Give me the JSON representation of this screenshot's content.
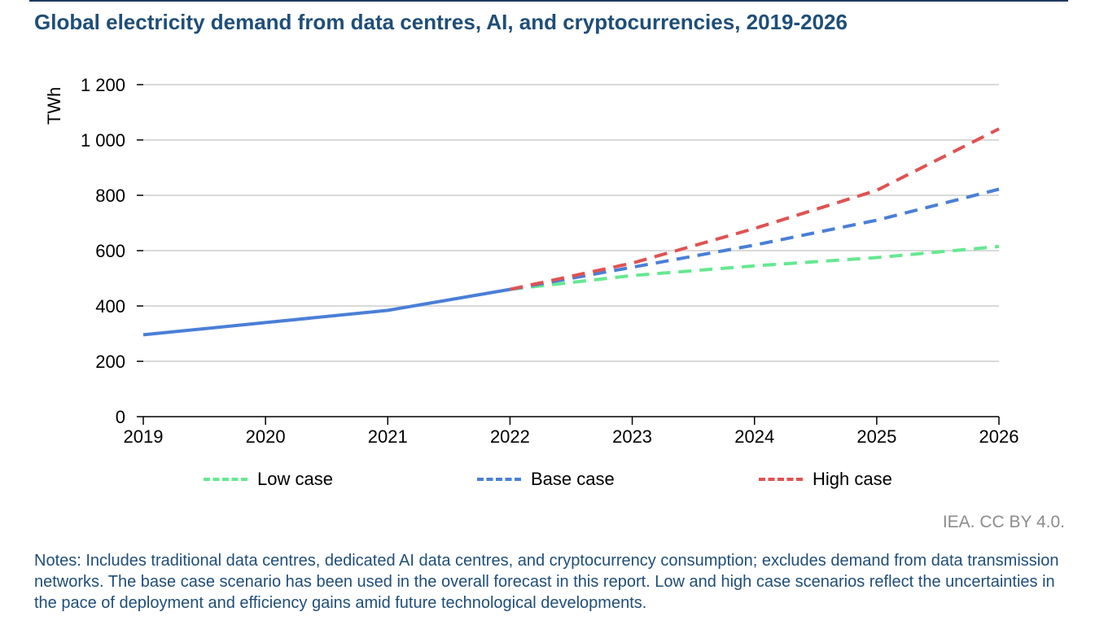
{
  "title": "Global electricity demand from data centres, AI, and cryptocurrencies, 2019-2026",
  "source": "IEA. CC BY 4.0.",
  "notes": "Notes: Includes traditional data centres, dedicated AI data centres, and cryptocurrency consumption; excludes demand from data transmission networks. The base case scenario has been used in the overall forecast in this report. Low and high case scenarios reflect the uncertainties in the pace of deployment and efficiency gains amid future technological developments.",
  "chart_data": {
    "type": "line",
    "title": "Global electricity demand from data centres, AI, and cryptocurrencies, 2019-2026",
    "ylabel": "TWh",
    "xlabel": "",
    "ylim": [
      0,
      1200
    ],
    "yticks": [
      0,
      200,
      400,
      600,
      800,
      1000,
      1200
    ],
    "ytick_labels": [
      "0",
      "200",
      "400",
      "600",
      "800",
      "1 000",
      "1 200"
    ],
    "x": [
      2019,
      2020,
      2021,
      2022,
      2023,
      2024,
      2025,
      2026
    ],
    "xtick_labels": [
      "2019",
      "2020",
      "2021",
      "2022",
      "2023",
      "2024",
      "2025",
      "2026"
    ],
    "grid": true,
    "legend_position": "bottom",
    "historical": {
      "x": [
        2019,
        2020,
        2021,
        2022
      ],
      "values": [
        296,
        340,
        384,
        460
      ],
      "color": "#4a7fd6"
    },
    "series": [
      {
        "name": "Low case",
        "x": [
          2022,
          2023,
          2024,
          2025,
          2026
        ],
        "values": [
          460,
          510,
          545,
          575,
          615
        ],
        "color": "#66e891",
        "style": "dashed"
      },
      {
        "name": "Base case",
        "x": [
          2022,
          2023,
          2024,
          2025,
          2026
        ],
        "values": [
          460,
          540,
          620,
          710,
          822
        ],
        "color": "#4a7fd6",
        "style": "dashed"
      },
      {
        "name": "High case",
        "x": [
          2022,
          2023,
          2024,
          2025,
          2026
        ],
        "values": [
          460,
          555,
          680,
          818,
          1040
        ],
        "color": "#e05252",
        "style": "dashed"
      }
    ]
  }
}
